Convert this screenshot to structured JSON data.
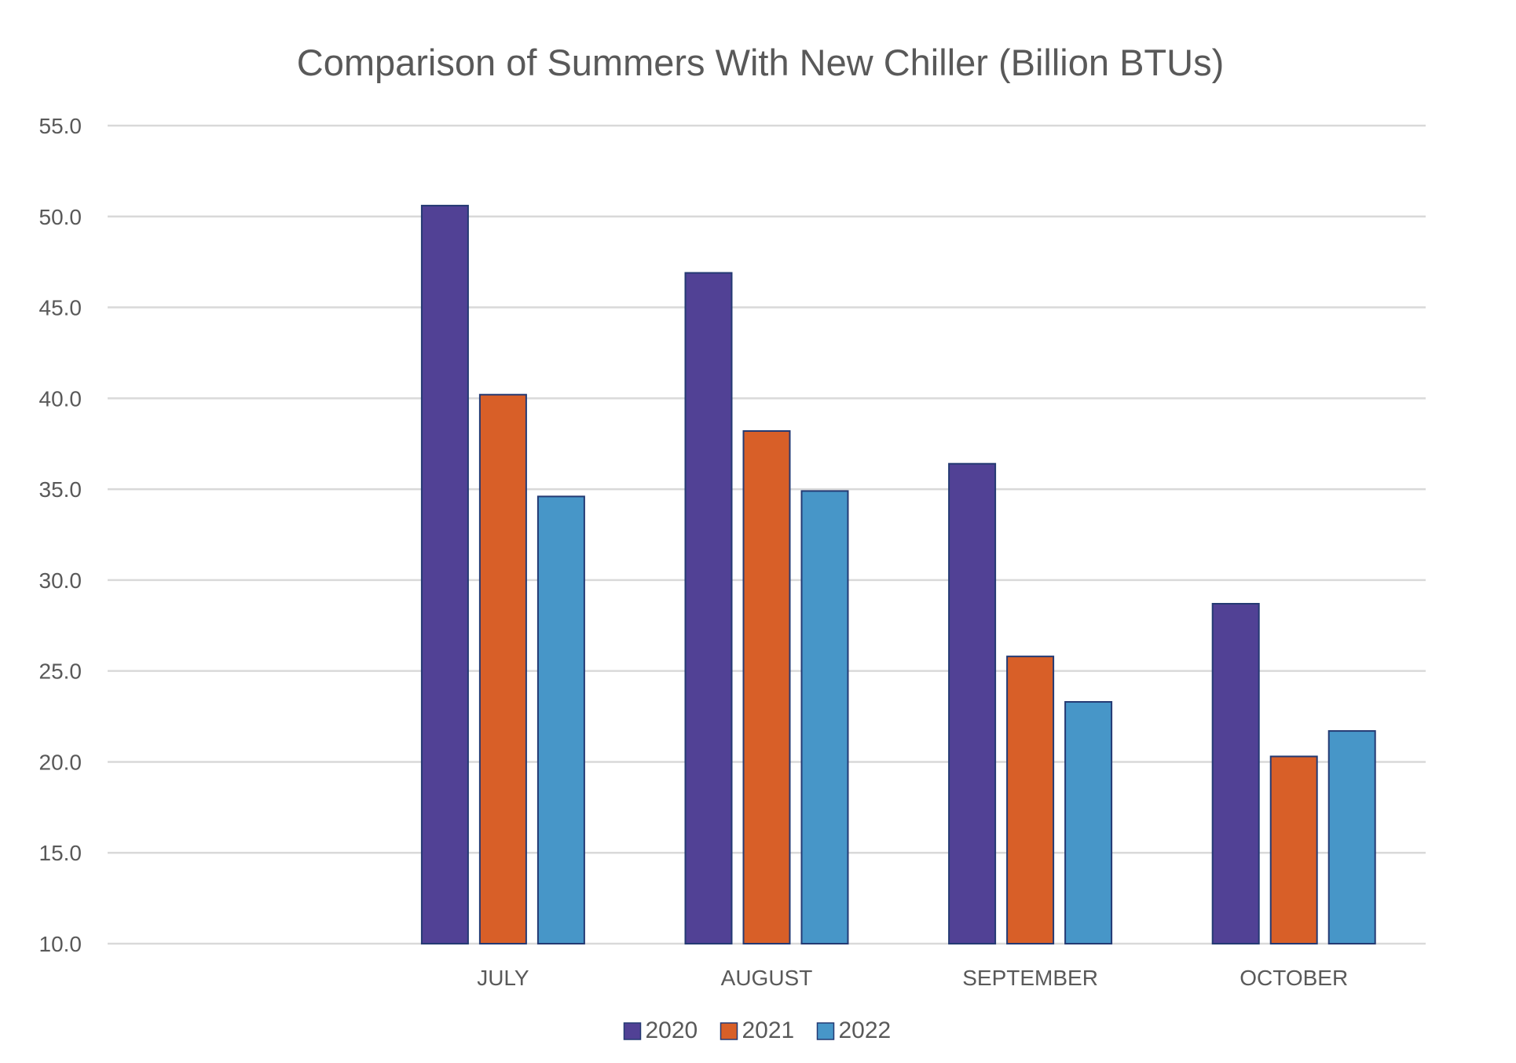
{
  "chart_data": {
    "type": "bar",
    "title": "Comparison of Summers With New Chiller (Billion BTUs)",
    "xlabel": "",
    "ylabel": "",
    "ylim": [
      10,
      55
    ],
    "y_tick_step": 5,
    "y_tick_decimals": 1,
    "grid": true,
    "legend_position": "bottom",
    "categories": [
      "",
      "JULY",
      "AUGUST",
      "SEPTEMBER",
      "OCTOBER"
    ],
    "series": [
      {
        "name": "2020",
        "color": "#514195",
        "values": [
          null,
          50.6,
          46.9,
          36.4,
          28.7
        ]
      },
      {
        "name": "2021",
        "color": "#d85f28",
        "values": [
          null,
          40.2,
          38.2,
          25.8,
          20.3
        ]
      },
      {
        "name": "2022",
        "color": "#4796c8",
        "values": [
          null,
          34.6,
          34.9,
          23.3,
          21.7
        ]
      }
    ]
  },
  "colors": {
    "bar_outline": "#243a73",
    "gridline": "#d9d9d9",
    "axis_text": "#595959",
    "title_text": "#595959"
  }
}
